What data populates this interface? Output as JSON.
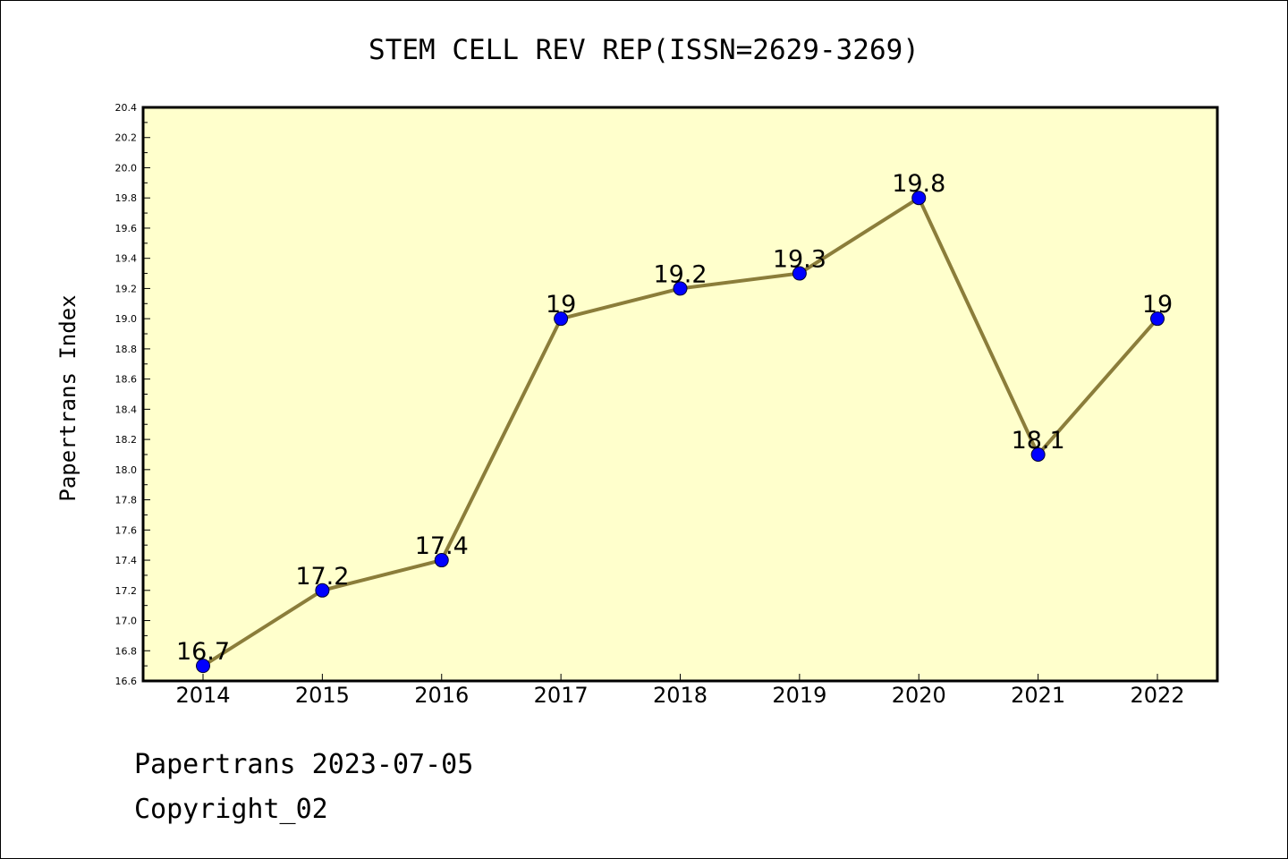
{
  "chart_data": {
    "type": "line",
    "title": "STEM CELL REV REP(ISSN=2629-3269)",
    "ylabel": "Papertrans Index",
    "xlabel": "",
    "categories": [
      "2014",
      "2015",
      "2016",
      "2017",
      "2018",
      "2019",
      "2020",
      "2021",
      "2022"
    ],
    "values": [
      16.7,
      17.2,
      17.4,
      19,
      19.2,
      19.3,
      19.8,
      18.1,
      19
    ],
    "data_labels": [
      "16.7",
      "17.2",
      "17.4",
      "19",
      "19.2",
      "19.3",
      "19.8",
      "18.1",
      "19"
    ],
    "ylim": [
      16.6,
      20.4
    ],
    "yticks": [
      "16.6",
      "16.8",
      "17.0",
      "17.2",
      "17.4",
      "17.6",
      "17.8",
      "18.0",
      "18.2",
      "18.4",
      "18.6",
      "18.8",
      "19.0",
      "19.2",
      "19.4",
      "19.6",
      "19.8",
      "20.0",
      "20.2",
      "20.4"
    ],
    "grid": false,
    "colors": {
      "plot_background": "#ffffcc",
      "line": "#8b7d3a",
      "marker": "#0000ff"
    }
  },
  "footer": {
    "line1": "Papertrans 2023-07-05",
    "line2": "Copyright_02"
  }
}
